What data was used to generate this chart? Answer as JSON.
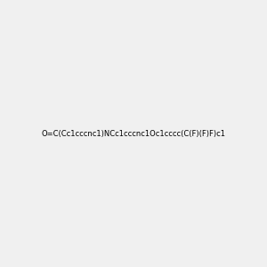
{
  "smiles": "O=C(Cc1cccnc1)NCc1cccnc1Oc1cccc(C(F)(F)F)c1",
  "title": "",
  "bg_color": "#f0f0f0",
  "bond_color": "#2d5a27",
  "n_color": "#1a1aff",
  "o_color": "#cc0000",
  "f_color": "#cc0099",
  "text_color": "#000000",
  "figsize": [
    3.0,
    3.0
  ],
  "dpi": 100
}
